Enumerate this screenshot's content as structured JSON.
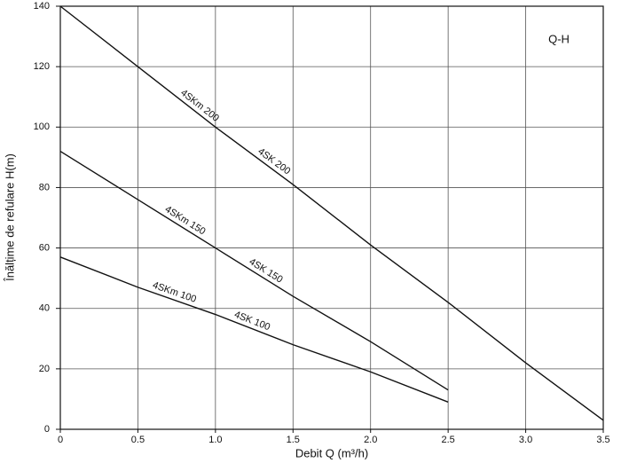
{
  "chart_data": {
    "type": "line",
    "title": "Q-H",
    "x_label": "Debit Q (m³/h)",
    "y_label": "Înălțime de refulare H(m)",
    "x": [
      0,
      0.5,
      1.0,
      1.5,
      2.0,
      2.5,
      3.0,
      3.5
    ],
    "series": [
      {
        "labels": [
          "4SKm 200",
          "4SK 200"
        ],
        "color": "#111111",
        "values": [
          140,
          120,
          100,
          81,
          61,
          42,
          22,
          3
        ]
      },
      {
        "labels": [
          "4SKm 150",
          "4SK 150"
        ],
        "color": "#111111",
        "values": [
          92,
          76,
          60,
          44,
          29,
          13,
          null,
          null
        ]
      },
      {
        "labels": [
          "4SKm 100",
          "4SK 100"
        ],
        "color": "#111111",
        "values": [
          57,
          47,
          38,
          28,
          19,
          9,
          null,
          null
        ]
      }
    ],
    "xlim": [
      0,
      3.5
    ],
    "ylim": [
      0,
      140
    ],
    "xticks": [
      0,
      0.5,
      {
        "value": 1,
        "label": "1.0"
      },
      1.5,
      {
        "value": 2,
        "label": "2.0"
      },
      2.5,
      {
        "value": 3,
        "label": "3.0"
      },
      3.5
    ],
    "yticks": [
      0,
      20,
      40,
      60,
      80,
      100,
      120,
      140
    ],
    "grid": true
  }
}
